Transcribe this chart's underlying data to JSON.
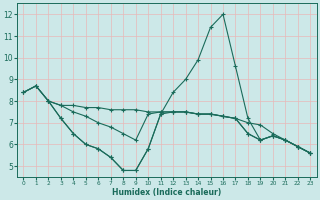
{
  "xlabel": "Humidex (Indice chaleur)",
  "background_color": "#cce8e8",
  "line_color": "#1a6b5a",
  "grid_color": "#e8b8b8",
  "xlim": [
    -0.5,
    23.5
  ],
  "ylim": [
    4.5,
    12.5
  ],
  "yticks": [
    5,
    6,
    7,
    8,
    9,
    10,
    11,
    12
  ],
  "xticks": [
    0,
    1,
    2,
    3,
    4,
    5,
    6,
    7,
    8,
    9,
    10,
    11,
    12,
    13,
    14,
    15,
    16,
    17,
    18,
    19,
    20,
    21,
    22,
    23
  ],
  "lines": [
    {
      "x": [
        0,
        1,
        2,
        3,
        4,
        5,
        6,
        7,
        8,
        9,
        10,
        11,
        12,
        13,
        14,
        15,
        16,
        17,
        18,
        19,
        20,
        21,
        22,
        23
      ],
      "y": [
        8.4,
        8.7,
        8.0,
        7.8,
        7.8,
        7.7,
        7.7,
        7.6,
        7.6,
        7.6,
        7.5,
        7.5,
        7.5,
        7.5,
        7.4,
        7.4,
        7.3,
        7.2,
        7.0,
        6.9,
        6.5,
        6.2,
        5.9,
        5.6
      ]
    },
    {
      "x": [
        0,
        1,
        2,
        3,
        4,
        5,
        6,
        7,
        8,
        9,
        10,
        11,
        12,
        13,
        14,
        15,
        16,
        17,
        18,
        19,
        20,
        21,
        22,
        23
      ],
      "y": [
        8.4,
        8.7,
        8.0,
        7.2,
        6.5,
        6.0,
        5.8,
        5.4,
        4.8,
        4.8,
        5.8,
        7.4,
        8.4,
        9.0,
        9.9,
        11.4,
        12.0,
        9.6,
        7.2,
        6.2,
        6.4,
        6.2,
        5.9,
        5.6
      ]
    },
    {
      "x": [
        0,
        1,
        2,
        3,
        4,
        5,
        6,
        7,
        8,
        9,
        10,
        11,
        12,
        13,
        14,
        15,
        16,
        17,
        18,
        19,
        20,
        21,
        22,
        23
      ],
      "y": [
        8.4,
        8.7,
        8.0,
        7.8,
        7.5,
        7.3,
        7.0,
        6.8,
        6.5,
        6.2,
        7.4,
        7.5,
        7.5,
        7.5,
        7.4,
        7.4,
        7.3,
        7.2,
        6.5,
        6.2,
        6.4,
        6.2,
        5.9,
        5.6
      ]
    },
    {
      "x": [
        2,
        3,
        4,
        5,
        6,
        7,
        8,
        9,
        10,
        11,
        12,
        13,
        14,
        15,
        16,
        17,
        18,
        19,
        20,
        21,
        22,
        23
      ],
      "y": [
        8.0,
        7.2,
        6.5,
        6.0,
        5.8,
        5.4,
        4.8,
        4.8,
        5.8,
        7.4,
        7.5,
        7.5,
        7.4,
        7.4,
        7.3,
        7.2,
        6.5,
        6.2,
        6.4,
        6.2,
        5.9,
        5.6
      ]
    }
  ]
}
